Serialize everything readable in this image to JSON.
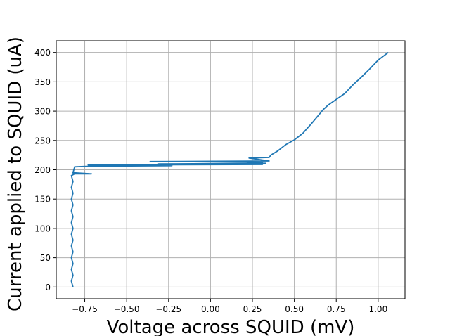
{
  "chart_data": {
    "type": "line",
    "title": "",
    "xlabel": "Voltage across SQUID (mV)",
    "ylabel": "Current applied to SQUID (uA)",
    "xlim": [
      -0.92,
      1.16
    ],
    "ylim": [
      -20,
      420
    ],
    "grid": true,
    "line_color": "#1f77b4",
    "x_ticks": [
      -0.75,
      -0.5,
      -0.25,
      0.0,
      0.25,
      0.5,
      0.75,
      1.0
    ],
    "x_tick_labels": [
      "−0.75",
      "−0.50",
      "−0.25",
      "0.00",
      "0.25",
      "0.50",
      "0.75",
      "1.00"
    ],
    "y_ticks": [
      0,
      50,
      100,
      150,
      200,
      250,
      300,
      350,
      400
    ],
    "y_tick_labels": [
      "0",
      "50",
      "100",
      "150",
      "200",
      "250",
      "300",
      "350",
      "400"
    ],
    "series": [
      {
        "x": [
          -0.82,
          -0.83,
          -0.82,
          -0.83,
          -0.82,
          -0.83,
          -0.82,
          -0.83,
          -0.82,
          -0.83,
          -0.82,
          -0.83,
          -0.82,
          -0.83,
          -0.82,
          -0.83,
          -0.82,
          -0.83,
          -0.82,
          -0.83,
          -0.81,
          -0.82,
          -0.71,
          -0.82,
          -0.81,
          -0.73,
          -0.23,
          -0.73,
          0.31,
          -0.31,
          0.33,
          0.22,
          0.31,
          -0.36,
          0.35,
          0.23,
          0.35,
          0.36,
          0.4,
          0.45,
          0.5,
          0.55,
          0.6,
          0.65,
          0.67,
          0.7,
          0.8,
          0.85,
          0.9,
          0.95,
          1.0,
          1.06
        ],
        "y": [
          0,
          10,
          20,
          30,
          40,
          50,
          60,
          70,
          80,
          90,
          100,
          110,
          120,
          130,
          140,
          150,
          160,
          170,
          180,
          190,
          193,
          193,
          193,
          195,
          205,
          206,
          207,
          208,
          209,
          210,
          211,
          212,
          213,
          214,
          215,
          220,
          221,
          225,
          232,
          243,
          251,
          262,
          278,
          295,
          302,
          310,
          330,
          345,
          358,
          372,
          387,
          400
        ]
      }
    ]
  }
}
